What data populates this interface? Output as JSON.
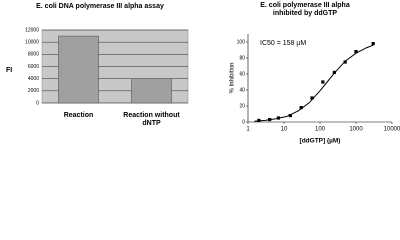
{
  "chart_data": [
    {
      "type": "bar",
      "title": "E. coli DNA polymerase III alpha assay",
      "y_label": "FI",
      "categories": [
        "Reaction",
        "Reaction without dNTP"
      ],
      "values": [
        11000,
        4000
      ],
      "color": "#a0a0a0",
      "ylim": [
        0,
        12000
      ],
      "yticks": [
        0,
        2000,
        4000,
        6000,
        8000,
        10000,
        12000
      ],
      "grid": true
    },
    {
      "type": "scatter",
      "title": "E. coli polymerase III alpha inhibited by ddGTP",
      "annotation": "IC50 = 158 µM",
      "x_label": "[ddGTP] (µM)",
      "y_label": "% Inhibition",
      "log_x": true,
      "series": [
        {
          "color": "#000000",
          "x": [
            2,
            4,
            7,
            15,
            30,
            60,
            120,
            250,
            500,
            1000,
            3000
          ],
          "values": [
            2,
            3,
            5,
            8,
            18,
            30,
            50,
            62,
            75,
            88,
            98
          ]
        },
        {
          "color": "#000000",
          "line": true,
          "x": [
            1.5,
            3,
            6,
            12,
            25,
            50,
            100,
            158,
            250,
            500,
            1000,
            2000,
            3000
          ],
          "values": [
            1,
            2,
            4,
            7,
            14,
            24,
            39,
            50,
            61,
            76,
            86,
            93,
            96
          ]
        }
      ],
      "xlim": [
        1,
        10000
      ],
      "xticks": [
        1,
        10,
        100,
        1000,
        10000
      ],
      "ylim": [
        0,
        110
      ],
      "yticks": [
        0,
        20,
        40,
        60,
        80,
        100
      ]
    }
  ]
}
